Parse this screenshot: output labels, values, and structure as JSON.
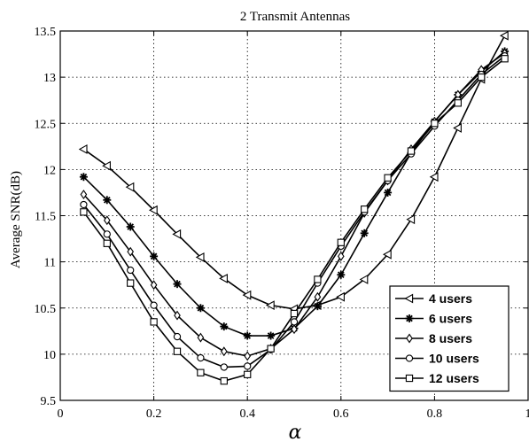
{
  "chart_data": {
    "type": "line",
    "title": "2 Transmit Antennas",
    "xlabel": "α",
    "ylabel": "Average SNR(dB)",
    "xlim": [
      0,
      1
    ],
    "ylim": [
      9.5,
      13.5
    ],
    "xticks": [
      0,
      0.2,
      0.4,
      0.6,
      0.8,
      1
    ],
    "xtick_labels": [
      "0",
      "0.2",
      "0.4",
      "0.6",
      "0.8",
      "1"
    ],
    "yticks": [
      9.5,
      10,
      10.5,
      11,
      11.5,
      12,
      12.5,
      13,
      13.5
    ],
    "ytick_labels": [
      "9.5",
      "10",
      "10.5",
      "11",
      "11.5",
      "12",
      "12.5",
      "13",
      "13.5"
    ],
    "grid": true,
    "legend_position": "bottom-right",
    "x": [
      0.05,
      0.1,
      0.15,
      0.2,
      0.25,
      0.3,
      0.35,
      0.4,
      0.45,
      0.5,
      0.55,
      0.6,
      0.65,
      0.7,
      0.75,
      0.8,
      0.85,
      0.9,
      0.95
    ],
    "series": [
      {
        "name": "4 users",
        "marker": "triangle-left",
        "values": [
          12.22,
          12.04,
          11.81,
          11.56,
          11.3,
          11.05,
          10.82,
          10.64,
          10.53,
          10.49,
          10.53,
          10.62,
          10.81,
          11.08,
          11.46,
          11.92,
          12.45,
          12.98,
          13.45
        ]
      },
      {
        "name": "6 users",
        "marker": "star",
        "values": [
          11.92,
          11.67,
          11.38,
          11.06,
          10.76,
          10.5,
          10.3,
          10.2,
          10.2,
          10.28,
          10.52,
          10.86,
          11.31,
          11.75,
          12.18,
          12.52,
          12.81,
          13.06,
          13.28
        ]
      },
      {
        "name": "8 users",
        "marker": "diamond",
        "values": [
          11.73,
          11.45,
          11.11,
          10.75,
          10.42,
          10.18,
          10.03,
          9.98,
          10.06,
          10.27,
          10.62,
          11.06,
          11.53,
          11.88,
          12.22,
          12.52,
          12.81,
          13.08,
          13.26
        ]
      },
      {
        "name": "10 users",
        "marker": "circle",
        "values": [
          11.62,
          11.3,
          10.91,
          10.53,
          10.19,
          9.96,
          9.86,
          9.87,
          10.05,
          10.35,
          10.77,
          11.17,
          11.54,
          11.88,
          12.17,
          12.47,
          12.75,
          13.03,
          13.23
        ]
      },
      {
        "name": "12 users",
        "marker": "square",
        "values": [
          11.54,
          11.2,
          10.77,
          10.35,
          10.03,
          9.8,
          9.71,
          9.78,
          10.06,
          10.44,
          10.81,
          11.21,
          11.57,
          11.91,
          12.2,
          12.5,
          12.72,
          13.0,
          13.2
        ]
      }
    ]
  }
}
